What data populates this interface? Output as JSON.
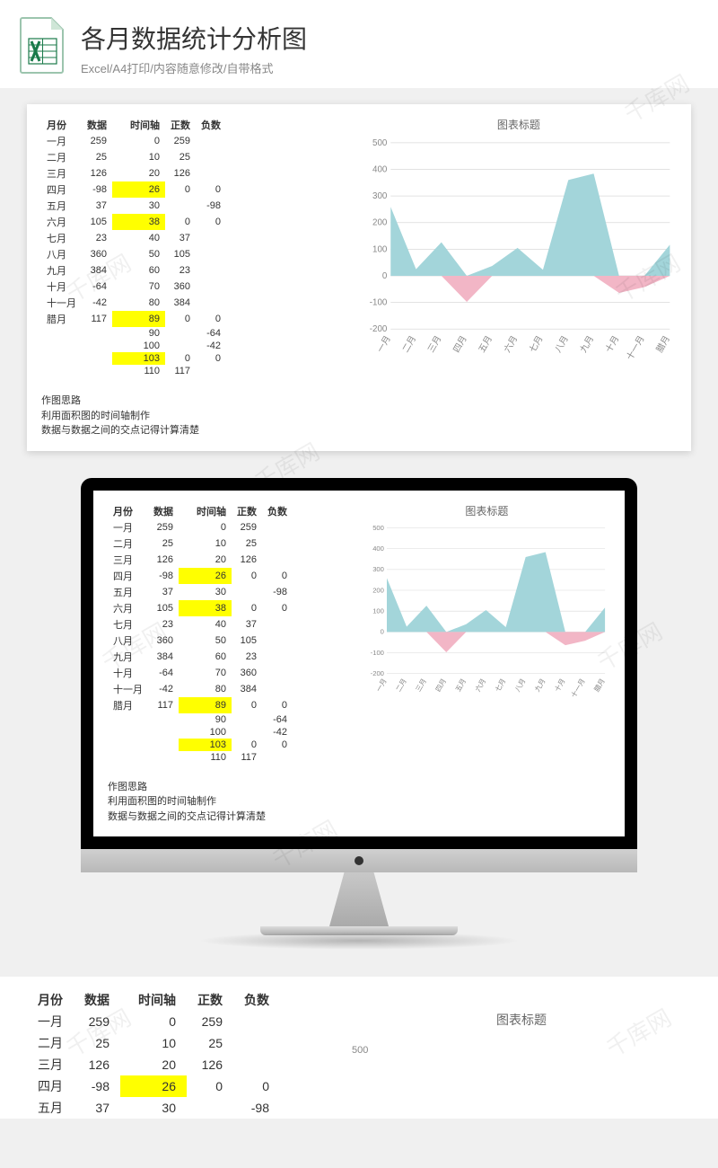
{
  "header": {
    "title": "各月数据统计分析图",
    "subtitle": "Excel/A4打印/内容随意修改/自带格式",
    "icon_colors": {
      "page": "#ffffff",
      "border": "#1a7a4a",
      "x_color": "#1a7a4a",
      "fold": "#cfe6d7"
    }
  },
  "table": {
    "columns": [
      "月份",
      "数据",
      "时间轴",
      "正数",
      "负数"
    ],
    "rows": [
      {
        "c": [
          "一月",
          "259",
          "0",
          "259",
          ""
        ],
        "hl": []
      },
      {
        "c": [
          "二月",
          "25",
          "10",
          "25",
          ""
        ],
        "hl": []
      },
      {
        "c": [
          "三月",
          "126",
          "20",
          "126",
          ""
        ],
        "hl": []
      },
      {
        "c": [
          "四月",
          "-98",
          "26",
          "0",
          "0"
        ],
        "hl": [
          2
        ]
      },
      {
        "c": [
          "五月",
          "37",
          "30",
          "",
          "-98"
        ],
        "hl": []
      },
      {
        "c": [
          "六月",
          "105",
          "38",
          "0",
          "0"
        ],
        "hl": [
          2
        ]
      },
      {
        "c": [
          "七月",
          "23",
          "40",
          "37",
          ""
        ],
        "hl": []
      },
      {
        "c": [
          "八月",
          "360",
          "50",
          "105",
          ""
        ],
        "hl": []
      },
      {
        "c": [
          "九月",
          "384",
          "60",
          "23",
          ""
        ],
        "hl": []
      },
      {
        "c": [
          "十月",
          "-64",
          "70",
          "360",
          ""
        ],
        "hl": []
      },
      {
        "c": [
          "十一月",
          "-42",
          "80",
          "384",
          ""
        ],
        "hl": []
      },
      {
        "c": [
          "腊月",
          "117",
          "89",
          "0",
          "0"
        ],
        "hl": [
          2
        ]
      },
      {
        "c": [
          "",
          "",
          "90",
          "",
          "-64"
        ],
        "hl": []
      },
      {
        "c": [
          "",
          "",
          "100",
          "",
          "-42"
        ],
        "hl": []
      },
      {
        "c": [
          "",
          "",
          "103",
          "0",
          "0"
        ],
        "hl": [
          2
        ]
      },
      {
        "c": [
          "",
          "",
          "110",
          "117",
          ""
        ],
        "hl": []
      }
    ],
    "highlight_color": "#ffff00"
  },
  "notes": {
    "heading": "作图思路",
    "lines": [
      "利用面积图的时间轴制作",
      "数据与数据之间的交点记得计算清楚"
    ]
  },
  "chart": {
    "title": "图表标题",
    "type": "area",
    "categories": [
      "一月",
      "二月",
      "三月",
      "四月",
      "五月",
      "六月",
      "七月",
      "八月",
      "九月",
      "十月",
      "十一月",
      "腊月"
    ],
    "pos_values": [
      259,
      25,
      126,
      0,
      37,
      105,
      23,
      360,
      384,
      0,
      0,
      117
    ],
    "neg_values": [
      0,
      0,
      0,
      -98,
      0,
      0,
      0,
      0,
      0,
      -64,
      -42,
      0
    ],
    "pos_fill": "#a3d5da",
    "neg_fill": "#f2b6c6",
    "y_ticks": [
      -200,
      -100,
      0,
      100,
      200,
      300,
      400,
      500
    ],
    "ylim": [
      -200,
      500
    ],
    "grid_color": "#d9d9d9",
    "axis_label_color": "#888",
    "axis_label_fontsize": 10,
    "background": "#ffffff"
  },
  "watermark_text": "千库网"
}
